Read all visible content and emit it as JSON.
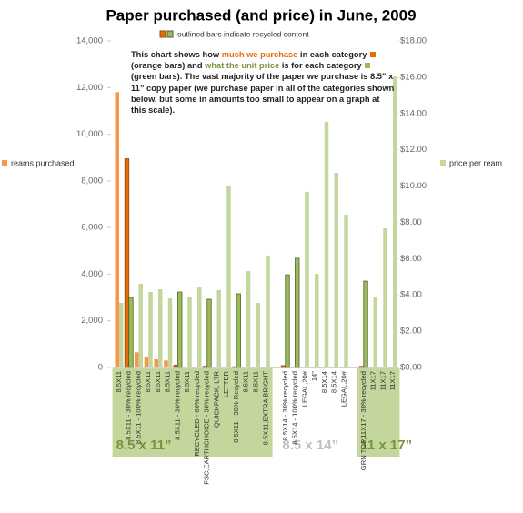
{
  "chart_data": {
    "type": "bar",
    "title": "Paper purchased (and price) in June, 2009",
    "legend": "outlined bars indicate recycled content",
    "annotation": [
      {
        "text": "This chart shows how "
      },
      {
        "text": "much we purchase",
        "color": "#e46c0a"
      },
      {
        "text": " in each category "
      },
      {
        "swatch": "#e46c0a",
        "text": "(orange bars) and "
      },
      {
        "text": "what the unit price",
        "color": "#77933c"
      },
      {
        "text": " is for each category "
      },
      {
        "swatch": "#9bbb59",
        "text": "(green bars). The vast majority of the paper we purchase is 8.5” x 11” copy paper (we purchase paper in all of the categories shown below, but some in amounts too small to appear on a graph at this scale)."
      }
    ],
    "categories": [
      "8.5X11",
      "8.5X11 - 30% recycled",
      "8.5X11 - 100% recycled",
      "8.5X11",
      "8.5X11",
      "8.5X11",
      "8.5X11 - 30% recycled",
      "8.5X11",
      "RECYCLED - 60% recycled",
      "FSC,EARTHCHOICE - 30% recycled",
      "QUICKPACK, LTR",
      "LETTER",
      "8.5X11 - 30% Recycled",
      "8.5X11",
      "8.5X11",
      "8.5X11,EXTRA BRIGHT",
      null,
      "8.5X14 - 30% recycled",
      "8.5X14 - 100% recycled",
      "LEGAL,20#",
      "14\"",
      "8.5X14",
      "8.5X14",
      "LEGAL,20#",
      null,
      "GRN TOP,11X17 - 30% recycled",
      "11X17",
      "11X17",
      "11X17"
    ],
    "outlined": [
      false,
      true,
      false,
      false,
      false,
      false,
      true,
      false,
      false,
      true,
      false,
      false,
      true,
      false,
      false,
      false,
      false,
      true,
      true,
      false,
      false,
      false,
      false,
      false,
      false,
      true,
      false,
      false,
      false
    ],
    "groups": [
      "8.5 x 11”",
      "8.5 x 14”",
      "11 x 17”"
    ],
    "group_colors": [
      "#77933c",
      "#bfbfbf",
      "#77933c"
    ],
    "group_fills": [
      "#c3d69b",
      "none",
      "#c3d69b"
    ],
    "series": [
      {
        "name": "reams purchased",
        "color": "#f79646",
        "outlined_color": "#e46c0a",
        "outline": "#984807",
        "values": [
          11800,
          8950,
          650,
          450,
          350,
          300,
          100,
          0,
          0,
          50,
          0,
          0,
          30,
          0,
          0,
          0,
          null,
          80,
          0,
          0,
          0,
          0,
          0,
          0,
          null,
          50,
          0,
          0,
          0
        ]
      },
      {
        "name": "price per ream",
        "axis": "y2",
        "color": "#c3d69b",
        "outlined_color": "#9bbb59",
        "outline": "#4f6228",
        "values": [
          3.56,
          3.86,
          4.61,
          4.16,
          4.31,
          3.81,
          4.16,
          3.86,
          4.41,
          3.76,
          4.26,
          9.98,
          4.06,
          5.31,
          3.56,
          6.17,
          null,
          5.11,
          6.02,
          9.68,
          5.16,
          13.54,
          10.73,
          8.42,
          null,
          4.76,
          3.91,
          7.67,
          16.04
        ]
      }
    ],
    "ylim": [
      0,
      14000
    ],
    "yticks": [
      0,
      {
        "value": 2000,
        "label": "2,000"
      },
      {
        "value": 4000,
        "label": "4,000"
      },
      {
        "value": 6000,
        "label": "6,000"
      },
      {
        "value": 8000,
        "label": "8,000"
      },
      {
        "value": 10000,
        "label": "10,000"
      },
      {
        "value": 12000,
        "label": "12,000"
      },
      {
        "value": 14000,
        "label": "14,000"
      }
    ],
    "y2lim": [
      0,
      18
    ],
    "y2ticks": [
      {
        "value": 0,
        "label": "$0.00"
      },
      {
        "value": 2,
        "label": "$2.00"
      },
      {
        "value": 4,
        "label": "$4.00"
      },
      {
        "value": 6,
        "label": "$6.00"
      },
      {
        "value": 8,
        "label": "$8.00"
      },
      {
        "value": 10,
        "label": "$10.00"
      },
      {
        "value": 12,
        "label": "$12.00"
      },
      {
        "value": 14,
        "label": "$14.00"
      },
      {
        "value": 16,
        "label": "$16.00"
      },
      {
        "value": 18,
        "label": "$18.00"
      }
    ]
  }
}
